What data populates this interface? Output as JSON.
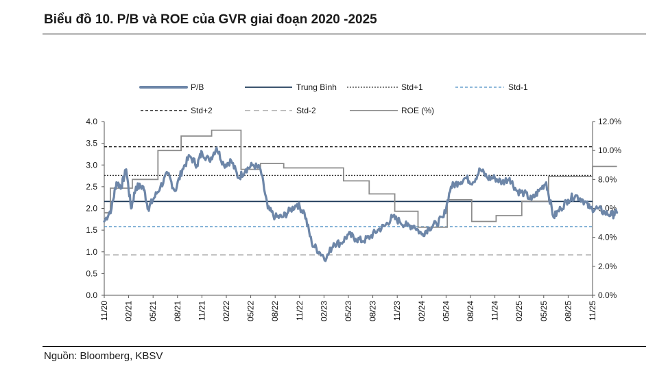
{
  "title": "Biểu đồ 10. P/B và ROE của GVR giai đoạn 2020 -2025",
  "source": "Nguồn: Bloomberg, KBSV",
  "chart_data": {
    "type": "line",
    "title": "Biểu đồ 10. P/B và ROE của GVR giai đoạn 2020 -2025",
    "y_left": {
      "min": 0,
      "max": 4,
      "ticks": [
        "0.0",
        "0.5",
        "1.0",
        "1.5",
        "2.0",
        "2.5",
        "3.0",
        "3.5",
        "4.0"
      ]
    },
    "y_right": {
      "min": 0,
      "max": 12,
      "ticks": [
        "0.0%",
        "2.0%",
        "4.0%",
        "6.0%",
        "8.0%",
        "10.0%",
        "12.0%"
      ]
    },
    "x_ticks": [
      "11/20",
      "02/21",
      "05/21",
      "08/21",
      "11/21",
      "02/22",
      "05/22",
      "08/22",
      "11/22",
      "02/23",
      "05/23",
      "08/23",
      "11/23",
      "02/24",
      "05/24",
      "08/24",
      "11/24",
      "02/25",
      "05/25",
      "08/25",
      "11/25"
    ],
    "legend": [
      {
        "label": "P/B",
        "style": "thick-solid",
        "color": "#6d86a8"
      },
      {
        "label": "Trung Bình",
        "style": "solid",
        "color": "#1f3b5a"
      },
      {
        "label": "Std+1",
        "style": "dotted",
        "color": "#333333"
      },
      {
        "label": "Std-1",
        "style": "dashed",
        "color": "#4a8fc4"
      },
      {
        "label": "Std+2",
        "style": "dashed",
        "color": "#222222"
      },
      {
        "label": "Std-2",
        "style": "long-dashed",
        "color": "#aaaaaa"
      },
      {
        "label": "ROE (%)",
        "style": "solid",
        "color": "#8c8c8c"
      }
    ],
    "reference_lines": {
      "mean": 2.16,
      "std_plus_1": 2.76,
      "std_minus_1": 1.58,
      "std_plus_2": 3.42,
      "std_minus_2": 0.93
    },
    "pb_series": {
      "name": "P/B",
      "x": [
        0,
        0.3,
        0.5,
        0.7,
        0.9,
        1.1,
        1.3,
        1.6,
        1.8,
        2.0,
        2.3,
        2.6,
        2.9,
        3.2,
        3.5,
        3.8,
        4.0,
        4.3,
        4.6,
        4.9,
        5.2,
        5.5,
        5.8,
        6.1,
        6.4,
        6.7,
        7.0,
        7.3,
        7.6,
        7.9,
        8.2,
        8.5,
        8.8,
        9.1,
        9.4,
        9.7,
        10.0,
        10.3,
        10.6,
        10.9,
        11.2,
        11.5,
        11.8,
        12.1,
        12.4,
        12.7,
        13.0,
        13.3,
        13.6,
        13.9,
        14.2,
        14.5,
        14.8,
        15.1,
        15.4,
        15.7,
        16.0,
        16.3,
        16.6,
        16.9,
        17.2,
        17.5,
        17.8,
        18.1,
        18.4,
        18.7,
        19.0,
        19.3,
        19.6,
        19.9,
        20.2,
        20.5,
        20.8,
        21.0
      ],
      "y": [
        1.7,
        2.0,
        2.6,
        2.5,
        2.9,
        2.0,
        2.5,
        2.5,
        2.0,
        2.2,
        2.5,
        2.8,
        2.4,
        2.9,
        3.2,
        3.0,
        3.3,
        3.1,
        3.4,
        3.0,
        3.1,
        2.7,
        2.9,
        3.0,
        2.9,
        2.0,
        1.8,
        1.8,
        1.95,
        2.1,
        1.9,
        1.2,
        1.0,
        0.85,
        1.2,
        1.2,
        1.4,
        1.3,
        1.25,
        1.35,
        1.5,
        1.6,
        1.8,
        1.7,
        1.6,
        1.6,
        1.4,
        1.55,
        1.65,
        1.8,
        2.5,
        2.6,
        2.7,
        2.6,
        2.9,
        2.7,
        2.7,
        2.6,
        2.7,
        2.4,
        2.35,
        2.2,
        2.4,
        2.6,
        1.8,
        2.0,
        2.2,
        2.3,
        2.2,
        2.0,
        2.0,
        1.9,
        1.85,
        1.9
      ]
    },
    "roe_series": {
      "name": "ROE (%)",
      "x": [
        0,
        0.25,
        0.25,
        1.15,
        1.15,
        2.2,
        2.2,
        3.15,
        3.15,
        4.4,
        4.4,
        5.6,
        5.6,
        6.4,
        6.4,
        7.35,
        7.35,
        9.8,
        9.8,
        10.85,
        10.85,
        11.9,
        11.9,
        12.85,
        12.85,
        14.05,
        14.05,
        15.05,
        15.05,
        16.05,
        16.05,
        17.1,
        17.1,
        18.2,
        18.2,
        20.0,
        20.0,
        21.0
      ],
      "y": [
        5.7,
        5.7,
        7.4,
        7.4,
        8.0,
        8.0,
        10.0,
        10.0,
        11.0,
        11.0,
        11.4,
        11.4,
        8.7,
        8.7,
        9.1,
        9.1,
        8.8,
        8.8,
        7.9,
        7.9,
        7.0,
        7.0,
        5.8,
        5.8,
        4.7,
        4.7,
        6.6,
        6.6,
        5.1,
        5.1,
        5.5,
        5.5,
        6.5,
        6.5,
        8.2,
        8.2,
        8.9,
        8.9
      ]
    }
  }
}
